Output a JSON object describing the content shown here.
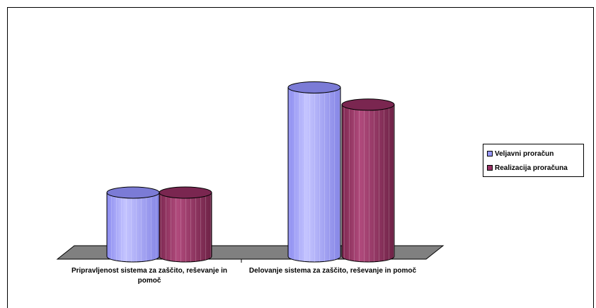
{
  "chart_data": {
    "type": "bar",
    "style": "3d-cylinder",
    "categories": [
      [
        "Pripravljenost sistema za zaščito, reševanje in",
        "pomoč"
      ],
      [
        "Delovanje sistema za zaščito, reševanje in pomoč"
      ]
    ],
    "series": [
      {
        "name": "Veljavni proračun",
        "color": "#9999ff",
        "values": [
          100,
          265
        ]
      },
      {
        "name": "Realizacija proračuna",
        "color": "#993366",
        "values": [
          100,
          238
        ]
      }
    ],
    "ylim": [
      0,
      300
    ],
    "grid": false,
    "legend": "right"
  }
}
